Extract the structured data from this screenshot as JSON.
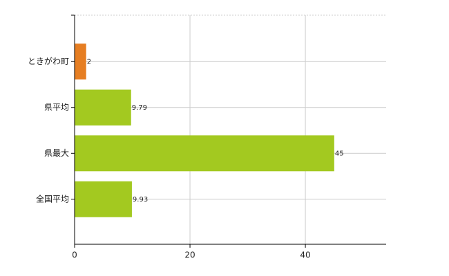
{
  "chart_data": {
    "type": "hbar",
    "categories": [
      "ときがわ町",
      "県平均",
      "県最大",
      "全国平均"
    ],
    "values": [
      2,
      9.79,
      45,
      9.93
    ],
    "colors": [
      "#e67e22",
      "#a3c920",
      "#a3c920",
      "#a3c920"
    ],
    "xlim": [
      0,
      54
    ],
    "xticks": [
      0,
      20,
      40
    ],
    "grid": true
  }
}
